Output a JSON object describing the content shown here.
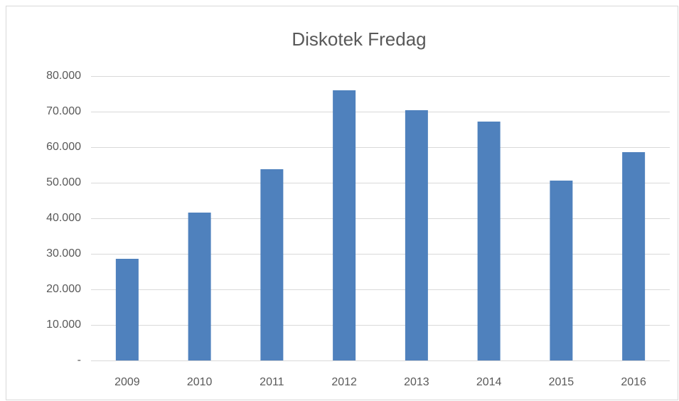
{
  "chart_data": {
    "type": "bar",
    "title": "Diskotek Fredag",
    "categories": [
      "2009",
      "2010",
      "2011",
      "2012",
      "2013",
      "2014",
      "2015",
      "2016"
    ],
    "values": [
      28600,
      41600,
      53800,
      76000,
      70400,
      67200,
      50600,
      58600
    ],
    "color": "#4f81bd",
    "ylim": [
      0,
      80000
    ],
    "yticks": [
      {
        "value": 0,
        "label": "-"
      },
      {
        "value": 10000,
        "label": "10.000"
      },
      {
        "value": 20000,
        "label": "20.000"
      },
      {
        "value": 30000,
        "label": "30.000"
      },
      {
        "value": 40000,
        "label": "40.000"
      },
      {
        "value": 50000,
        "label": "50.000"
      },
      {
        "value": 60000,
        "label": "60.000"
      },
      {
        "value": 70000,
        "label": "70.000"
      },
      {
        "value": 80000,
        "label": "80.000"
      }
    ],
    "grid": true
  }
}
